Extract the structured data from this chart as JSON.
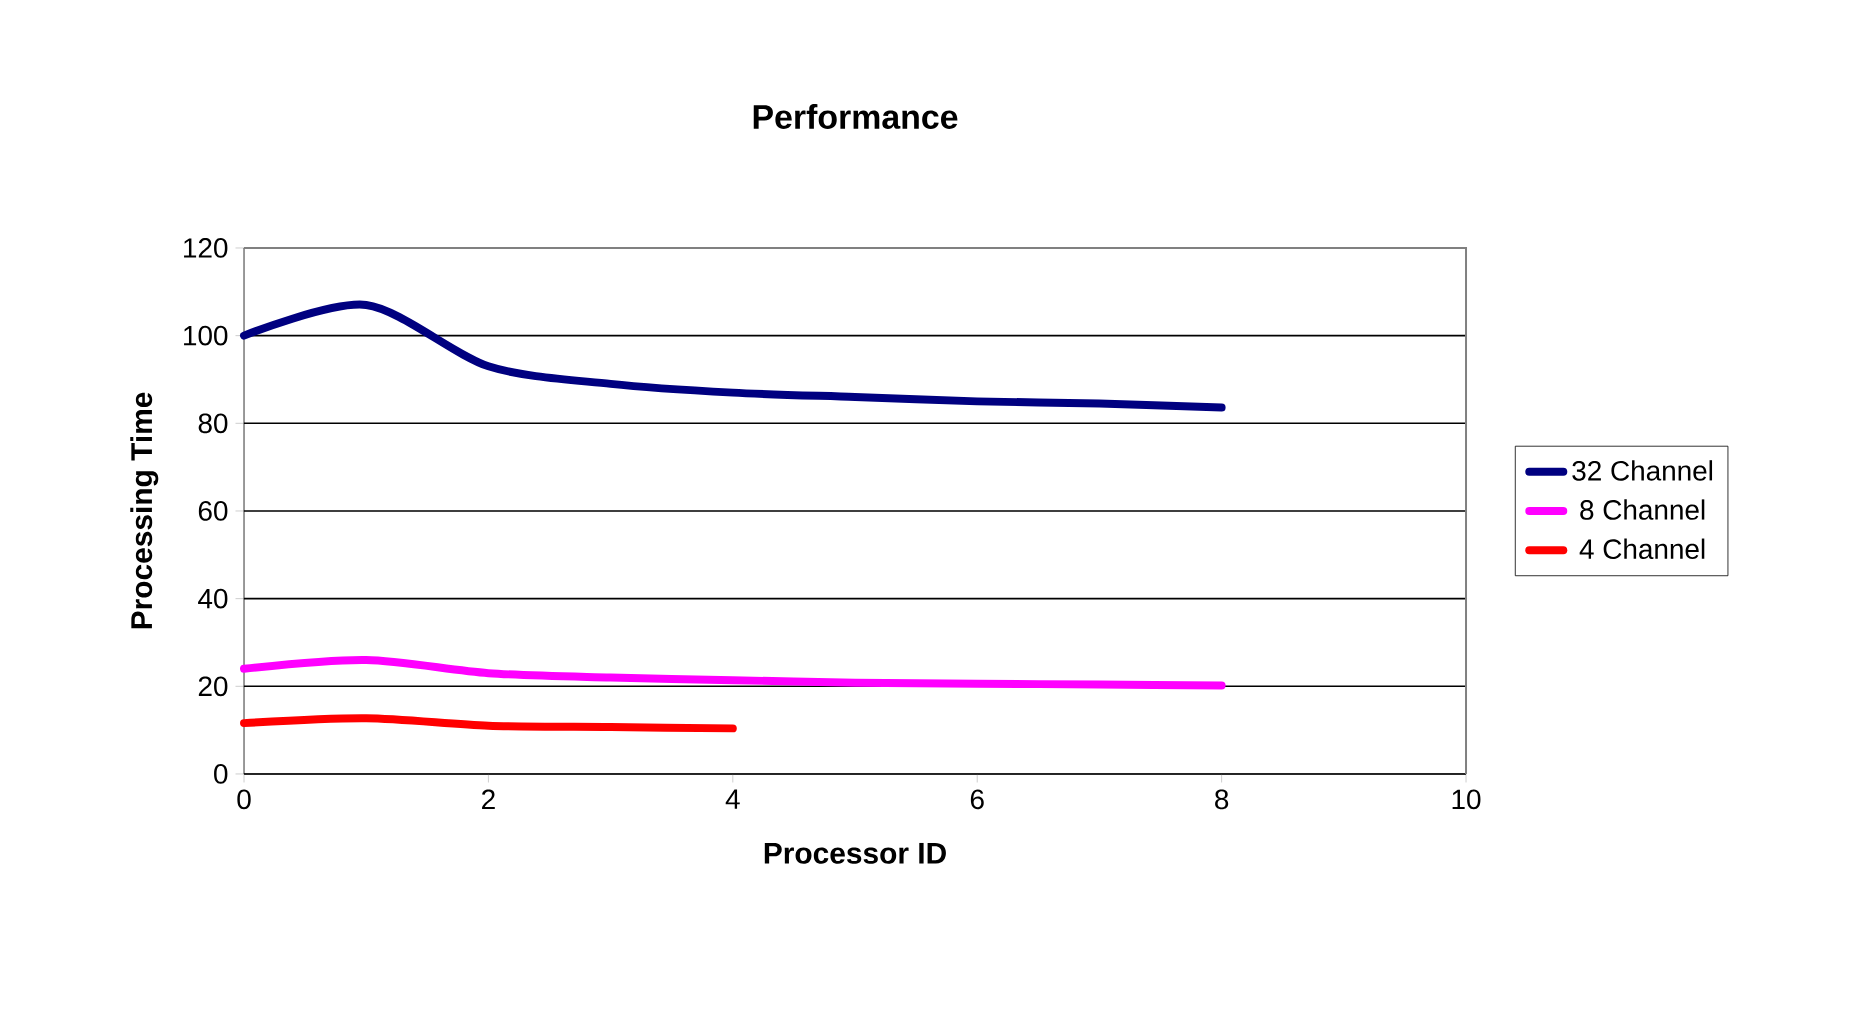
{
  "chart_data": {
    "type": "line",
    "title": "Performance",
    "xlabel": "Processor ID",
    "ylabel": "Processing Time",
    "xlim": [
      0,
      10
    ],
    "xticks": [
      0,
      2,
      4,
      6,
      8,
      10
    ],
    "ylim": [
      0,
      120
    ],
    "yticks": [
      0,
      20,
      40,
      60,
      80,
      100,
      120
    ],
    "grid": "y",
    "legend": "right",
    "marker": "none",
    "line_style": "solid",
    "series": [
      {
        "name": "32 Channel",
        "color": "#000080",
        "x": [
          0,
          1,
          2,
          3,
          4,
          5,
          6,
          7,
          8
        ],
        "values": [
          100,
          107,
          93,
          89,
          87,
          86,
          85,
          84.5,
          83.6
        ]
      },
      {
        "name": "8 Channel",
        "color": "#ff00ff",
        "x": [
          0,
          1,
          2,
          3,
          4,
          5,
          6,
          7,
          8
        ],
        "values": [
          24,
          26,
          23,
          22,
          21.4,
          20.8,
          20.6,
          20.4,
          20.2
        ]
      },
      {
        "name": "4 Channel",
        "color": "#ff0000",
        "x": [
          0,
          1,
          2,
          3,
          4
        ],
        "values": [
          11.6,
          12.7,
          11,
          10.7,
          10.4
        ]
      }
    ]
  }
}
